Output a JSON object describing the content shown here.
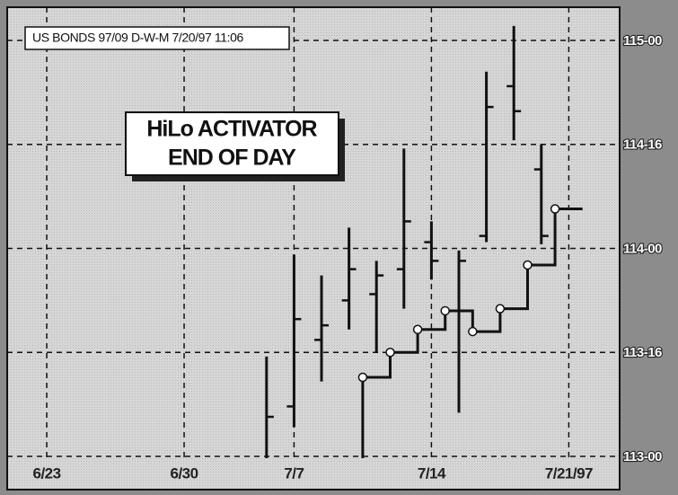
{
  "chart_data": {
    "type": "ohlc",
    "title": "US BONDS 97/09 D-W-M 7/20/97 11:06",
    "annotation": [
      "HiLo ACTIVATOR",
      "END OF DAY"
    ],
    "x": [
      8,
      9,
      10,
      11,
      12,
      13,
      14,
      15,
      16,
      17,
      18
    ],
    "open": [
      null,
      113.24,
      113.56,
      113.75,
      113.78,
      113.9,
      114.03,
      113.7,
      114.06,
      114.78,
      114.38
    ],
    "high": [
      113.48,
      113.97,
      113.87,
      114.1,
      113.94,
      114.48,
      114.13,
      113.99,
      114.85,
      115.07,
      114.5
    ],
    "low": [
      112.98,
      113.14,
      113.36,
      113.61,
      113.5,
      113.71,
      113.85,
      113.21,
      114.03,
      114.52,
      114.02
    ],
    "close": [
      113.19,
      113.66,
      113.63,
      113.9,
      113.87,
      114.13,
      113.94,
      113.94,
      114.68,
      114.66,
      114.06
    ],
    "bar_color": "#111111",
    "activator_x": [
      11.5,
      12.5,
      13.5,
      14.5,
      15.5,
      16.5,
      17.5,
      18.5
    ],
    "activator": [
      113.38,
      113.5,
      113.61,
      113.7,
      113.6,
      113.71,
      113.92,
      114.19
    ],
    "activator_color": "#111111",
    "xlim": [
      -1.44,
      20.85
    ],
    "xticks": [
      {
        "value": 0,
        "label": "6/23"
      },
      {
        "value": 5,
        "label": "6/30"
      },
      {
        "value": 9,
        "label": "7/7"
      },
      {
        "value": 14,
        "label": "7/14"
      },
      {
        "value": 19,
        "label": "7/21/97"
      }
    ],
    "ylim": [
      112.84,
      115.16
    ],
    "yticks": [
      {
        "value": 113,
        "label": "113-00"
      },
      {
        "value": 113.5,
        "label": "113-16"
      },
      {
        "value": 114,
        "label": "114-00"
      },
      {
        "value": 114.5,
        "label": "114-16"
      },
      {
        "value": 115,
        "label": "115-00"
      }
    ],
    "grid": true
  }
}
